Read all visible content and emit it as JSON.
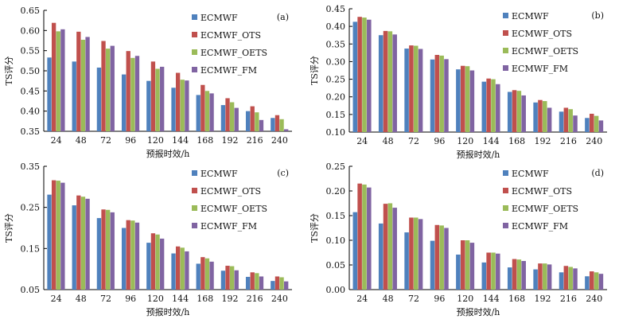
{
  "colors": {
    "ECMWF": "#4f81bd",
    "ECMWF_OTS": "#c0504d",
    "ECMWF_OETS": "#9bbb59",
    "ECMWF_FM": "#8064a2"
  },
  "chart_data": [
    {
      "type": "bar",
      "panel_label": "(a)",
      "categories": [
        "24",
        "48",
        "72",
        "96",
        "120",
        "144",
        "168",
        "192",
        "216",
        "240"
      ],
      "xlabel": "预报时效/h",
      "ylabel": "TS评分",
      "ylim": [
        0.35,
        0.65
      ],
      "yticks": [
        "0.35",
        "0.40",
        "0.45",
        "0.50",
        "0.55",
        "0.60",
        "0.65"
      ],
      "legend_position": "top-right",
      "series": [
        {
          "name": "ECMWF",
          "values": [
            0.533,
            0.523,
            0.508,
            0.491,
            0.475,
            0.458,
            0.44,
            0.415,
            0.4,
            0.383
          ]
        },
        {
          "name": "ECMWF_OTS",
          "values": [
            0.619,
            0.597,
            0.574,
            0.549,
            0.523,
            0.495,
            0.465,
            0.432,
            0.412,
            0.39
          ]
        },
        {
          "name": "ECMWF_OETS",
          "values": [
            0.598,
            0.577,
            0.555,
            0.532,
            0.505,
            0.478,
            0.45,
            0.422,
            0.397,
            0.38
          ]
        },
        {
          "name": "ECMWF_FM",
          "values": [
            0.603,
            0.584,
            0.562,
            0.537,
            0.51,
            0.476,
            0.444,
            0.408,
            0.378,
            0.355
          ]
        }
      ]
    },
    {
      "type": "bar",
      "panel_label": "(b)",
      "categories": [
        "24",
        "48",
        "72",
        "96",
        "120",
        "144",
        "168",
        "192",
        "216",
        "240"
      ],
      "xlabel": "预报时效/h",
      "ylabel": "TS评分",
      "ylim": [
        0.1,
        0.45
      ],
      "yticks": [
        "0.10",
        "0.15",
        "0.20",
        "0.25",
        "0.30",
        "0.35",
        "0.40",
        "0.45"
      ],
      "legend_position": "top-right",
      "series": [
        {
          "name": "ECMWF",
          "values": [
            0.413,
            0.375,
            0.337,
            0.306,
            0.278,
            0.243,
            0.214,
            0.184,
            0.158,
            0.14
          ]
        },
        {
          "name": "ECMWF_OTS",
          "values": [
            0.427,
            0.387,
            0.346,
            0.319,
            0.288,
            0.252,
            0.219,
            0.191,
            0.169,
            0.152
          ]
        },
        {
          "name": "ECMWF_OETS",
          "values": [
            0.425,
            0.386,
            0.345,
            0.317,
            0.287,
            0.25,
            0.217,
            0.188,
            0.165,
            0.146
          ]
        },
        {
          "name": "ECMWF_FM",
          "values": [
            0.419,
            0.377,
            0.336,
            0.307,
            0.275,
            0.236,
            0.204,
            0.169,
            0.147,
            0.133
          ]
        }
      ]
    },
    {
      "type": "bar",
      "panel_label": "(c)",
      "categories": [
        "24",
        "48",
        "72",
        "96",
        "120",
        "144",
        "168",
        "192",
        "216",
        "240"
      ],
      "xlabel": "预报时效/h",
      "ylabel": "TS评分",
      "ylim": [
        0.05,
        0.35
      ],
      "yticks": [
        "0.05",
        "0.15",
        "0.25",
        "0.35"
      ],
      "legend_position": "top-right",
      "series": [
        {
          "name": "ECMWF",
          "values": [
            0.281,
            0.255,
            0.224,
            0.2,
            0.164,
            0.138,
            0.113,
            0.096,
            0.081,
            0.071
          ]
        },
        {
          "name": "ECMWF_OTS",
          "values": [
            0.316,
            0.279,
            0.245,
            0.219,
            0.187,
            0.155,
            0.129,
            0.108,
            0.092,
            0.082
          ]
        },
        {
          "name": "ECMWF_OETS",
          "values": [
            0.315,
            0.276,
            0.244,
            0.218,
            0.184,
            0.152,
            0.126,
            0.107,
            0.09,
            0.08
          ]
        },
        {
          "name": "ECMWF_FM",
          "values": [
            0.31,
            0.271,
            0.238,
            0.213,
            0.174,
            0.143,
            0.118,
            0.097,
            0.082,
            0.07
          ]
        }
      ]
    },
    {
      "type": "bar",
      "panel_label": "(d)",
      "categories": [
        "24",
        "48",
        "72",
        "96",
        "120",
        "144",
        "168",
        "192",
        "216",
        "240"
      ],
      "xlabel": "预报时效/h",
      "ylabel": "TS评分",
      "ylim": [
        0.0,
        0.25
      ],
      "yticks": [
        "0.00",
        "0.05",
        "0.10",
        "0.15",
        "0.20",
        "0.25"
      ],
      "legend_position": "top-right",
      "series": [
        {
          "name": "ECMWF",
          "values": [
            0.157,
            0.134,
            0.116,
            0.099,
            0.071,
            0.055,
            0.045,
            0.041,
            0.035,
            0.027
          ]
        },
        {
          "name": "ECMWF_OTS",
          "values": [
            0.215,
            0.174,
            0.146,
            0.131,
            0.1,
            0.075,
            0.062,
            0.053,
            0.048,
            0.037
          ]
        },
        {
          "name": "ECMWF_OETS",
          "values": [
            0.213,
            0.175,
            0.146,
            0.13,
            0.1,
            0.075,
            0.061,
            0.053,
            0.046,
            0.035
          ]
        },
        {
          "name": "ECMWF_FM",
          "values": [
            0.207,
            0.166,
            0.143,
            0.125,
            0.095,
            0.073,
            0.058,
            0.051,
            0.043,
            0.032
          ]
        }
      ]
    }
  ]
}
